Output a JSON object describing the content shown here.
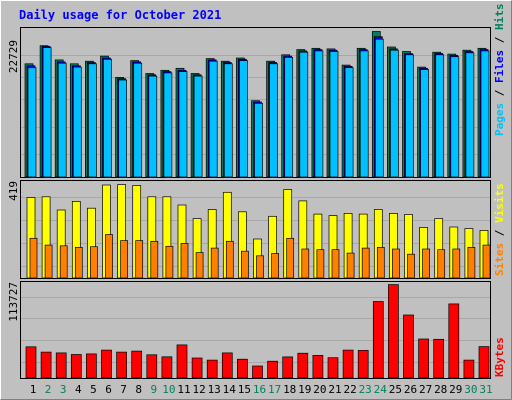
{
  "colors": {
    "background": "#c0c0c0",
    "plot_bg": "#c0c0c0",
    "title": "#0000ff",
    "hits": "#00805c",
    "files": "#0000ff",
    "pages": "#00c0ff",
    "visits": "#ffff00",
    "sites": "#ff8000",
    "kbytes": "#ff0000",
    "weekend_day": "#00805c",
    "weekday_day": "#000000"
  },
  "chart_data": {
    "type": "bar",
    "title": "Daily usage for October 2021",
    "categories": [
      "1",
      "2",
      "3",
      "4",
      "5",
      "6",
      "7",
      "8",
      "9",
      "10",
      "11",
      "12",
      "13",
      "14",
      "15",
      "16",
      "17",
      "18",
      "19",
      "20",
      "21",
      "22",
      "23",
      "24",
      "25",
      "26",
      "27",
      "28",
      "29",
      "30",
      "31"
    ],
    "weekend_days": [
      "2",
      "3",
      "9",
      "10",
      "16",
      "17",
      "23",
      "24",
      "30",
      "31"
    ],
    "panels": [
      {
        "id": "hits",
        "ymax": 22729,
        "ymax_label": "22729",
        "legend": [
          "Hits",
          "Files",
          "Pages"
        ],
        "series": [
          {
            "name": "Hits",
            "values": [
              17500,
              20300,
              18100,
              17500,
              17900,
              18700,
              15400,
              18000,
              16000,
              16500,
              16800,
              16000,
              18300,
              17900,
              18400,
              11800,
              17900,
              18900,
              19700,
              19900,
              19800,
              17300,
              19900,
              22500,
              20100,
              19400,
              17000,
              19300,
              19000,
              19600,
              19900
            ]
          },
          {
            "name": "Files",
            "values": [
              17200,
              20200,
              17800,
              17200,
              17700,
              18400,
              15200,
              17800,
              15800,
              16300,
              16500,
              15800,
              18100,
              17700,
              18200,
              11600,
              17700,
              18700,
              19500,
              19700,
              19600,
              17100,
              19700,
              21700,
              19800,
              19100,
              16800,
              19100,
              18800,
              19400,
              19700
            ]
          },
          {
            "name": "Pages",
            "values": [
              16900,
              20000,
              17600,
              17000,
              17500,
              18200,
              15000,
              17600,
              15600,
              16100,
              16300,
              15600,
              17900,
              17500,
              18000,
              11400,
              17500,
              18500,
              19300,
              19500,
              19400,
              16900,
              19500,
              21300,
              19600,
              18900,
              16600,
              18900,
              18600,
              19200,
              19500
            ]
          }
        ]
      },
      {
        "id": "visits",
        "ymax": 419,
        "ymax_label": "419",
        "legend": [
          "Visits",
          "Sites"
        ],
        "series": [
          {
            "name": "Visits",
            "values": [
              355,
              358,
              300,
              338,
              308,
              410,
              412,
              408,
              358,
              358,
              322,
              262,
              302,
              378,
              292,
              172,
              272,
              390,
              340,
              282,
              275,
              285,
              282,
              302,
              285,
              280,
              223,
              262,
              225,
              218,
              210
            ]
          },
          {
            "name": "Sites",
            "values": [
              175,
              145,
              142,
              135,
              138,
              192,
              165,
              165,
              162,
              140,
              152,
              112,
              132,
              162,
              118,
              98,
              108,
              175,
              128,
              125,
              125,
              110,
              132,
              135,
              128,
              105,
              128,
              125,
              128,
              135,
              145
            ]
          }
        ]
      },
      {
        "id": "kbytes",
        "ymax": 113727,
        "ymax_label": "113727",
        "legend": [
          "KBytes"
        ],
        "series": [
          {
            "name": "KBytes",
            "values": [
              37800,
              31300,
              30400,
              28400,
              29100,
              33700,
              31300,
              32500,
              28100,
              25600,
              40000,
              24200,
              21600,
              30400,
              22800,
              14500,
              20300,
              25500,
              30000,
              27300,
              24500,
              33700,
              33400,
              92500,
              113000,
              76200,
              47200,
              46800,
              89600,
              21600,
              38000
            ]
          }
        ]
      }
    ]
  }
}
